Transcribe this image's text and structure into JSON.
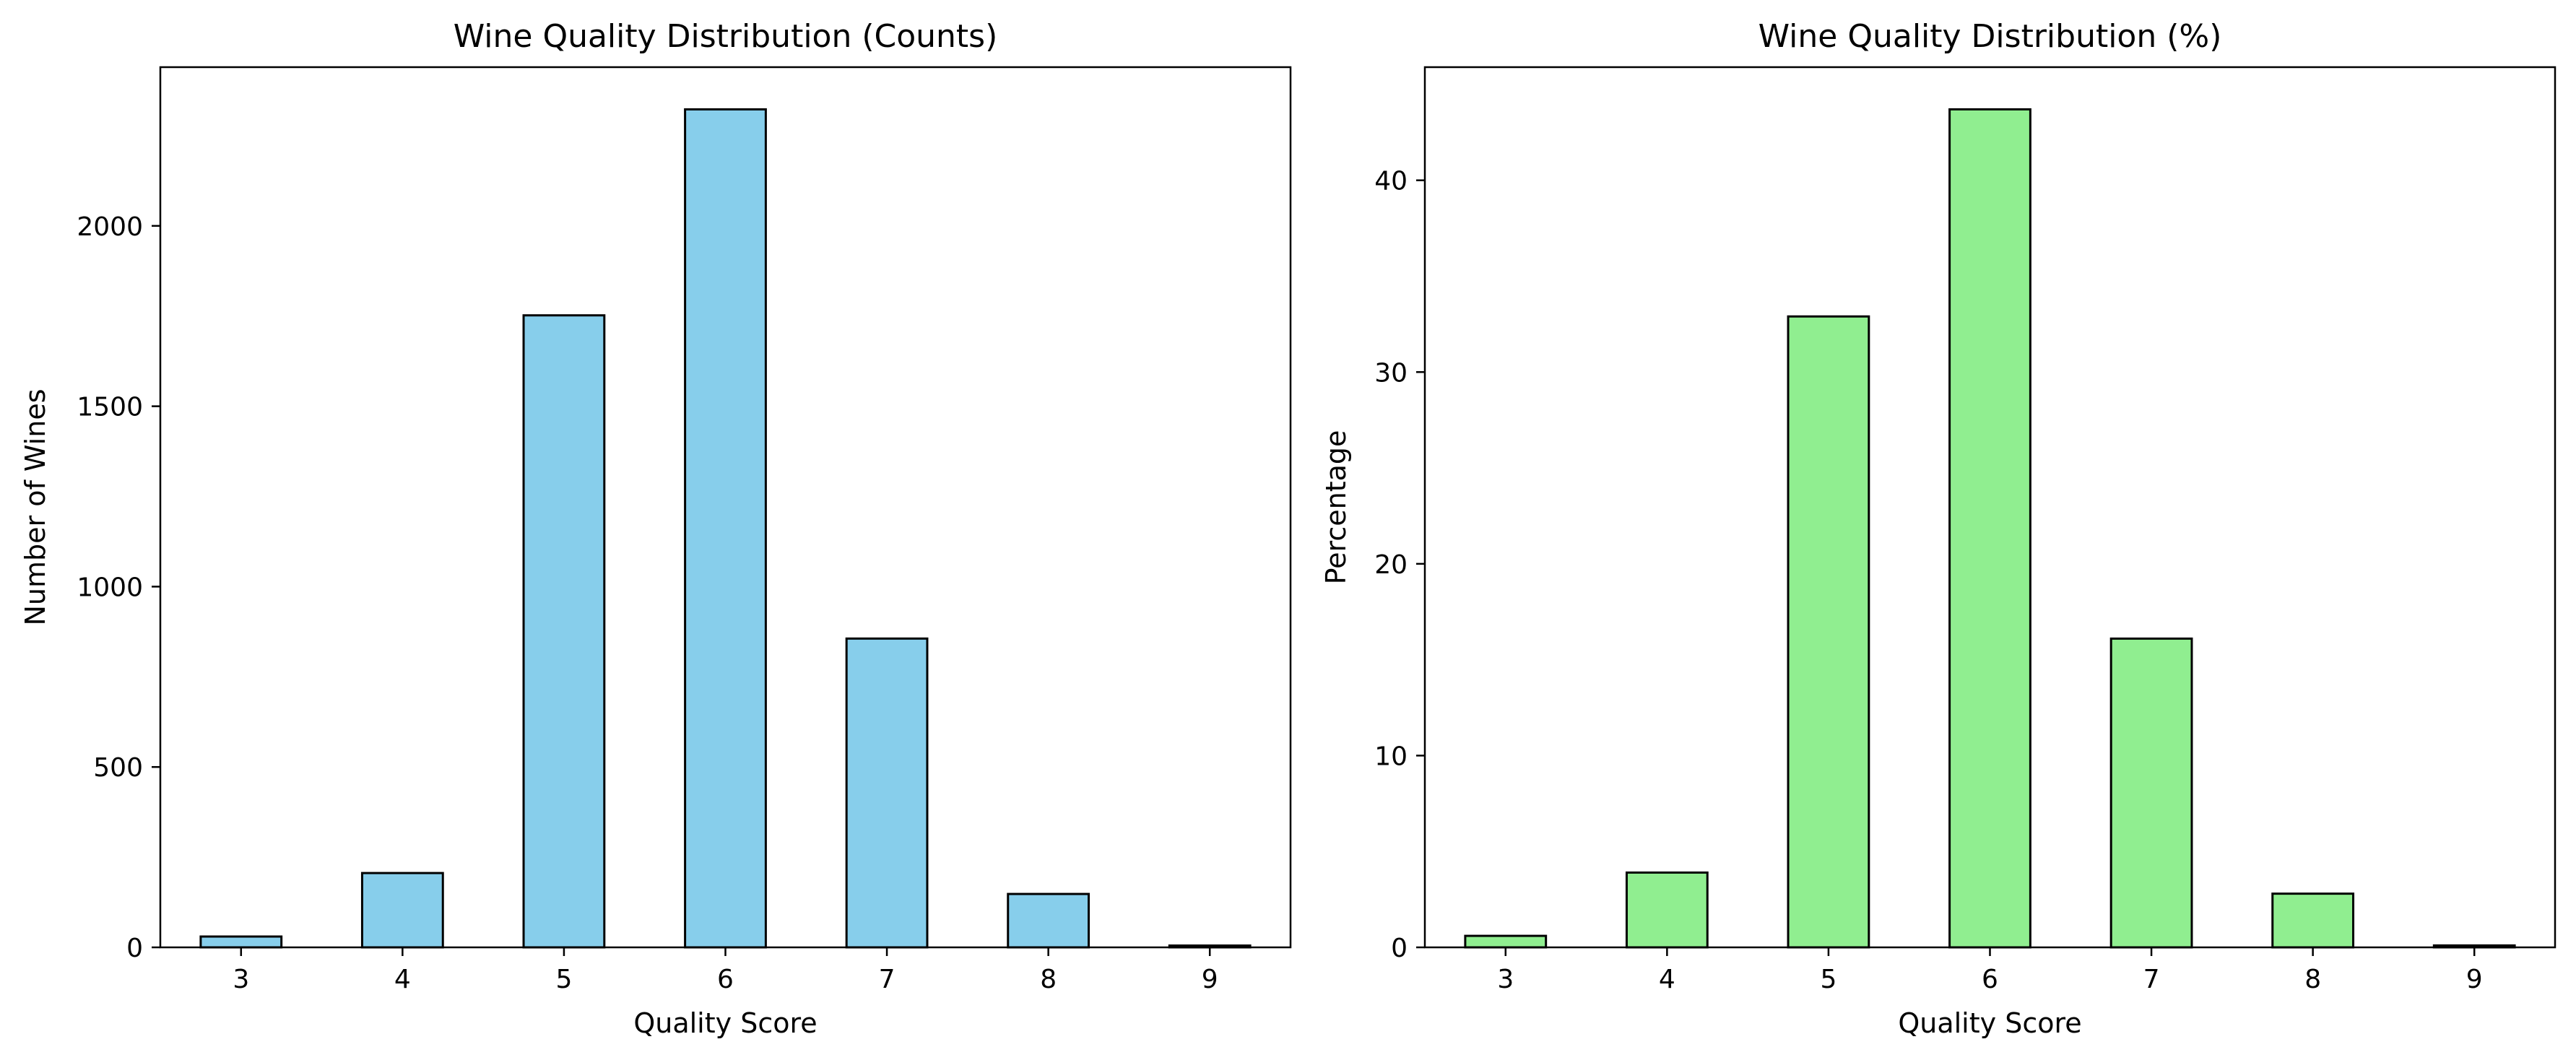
{
  "chart_data": [
    {
      "type": "bar",
      "title": "Wine Quality Distribution (Counts)",
      "xlabel": "Quality Score",
      "ylabel": "Number of Wines",
      "categories": [
        "3",
        "4",
        "5",
        "6",
        "7",
        "8",
        "9"
      ],
      "values": [
        30,
        206,
        1752,
        2323,
        856,
        148,
        5
      ],
      "ylim": [
        0,
        2440
      ],
      "yticks": [
        0,
        500,
        1000,
        1500,
        2000
      ],
      "bar_color": "#87CEEB",
      "edge_color": "#000000",
      "grid": false
    },
    {
      "type": "bar",
      "title": "Wine Quality Distribution (%)",
      "xlabel": "Quality Score",
      "ylabel": "Percentage",
      "categories": [
        "3",
        "4",
        "5",
        "6",
        "7",
        "8",
        "9"
      ],
      "values": [
        0.6,
        3.9,
        32.9,
        43.7,
        16.1,
        2.8,
        0.1
      ],
      "ylim": [
        0,
        45.9
      ],
      "yticks": [
        0,
        10,
        20,
        30,
        40
      ],
      "bar_color": "#90EE90",
      "edge_color": "#000000",
      "grid": false
    }
  ]
}
